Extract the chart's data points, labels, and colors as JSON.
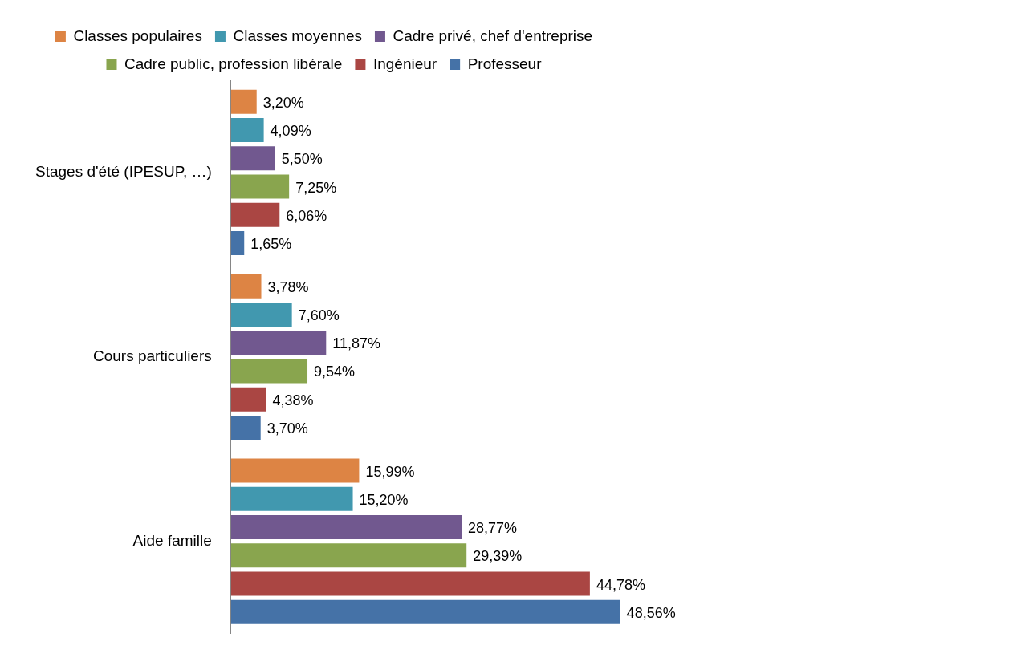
{
  "chart_data": {
    "type": "bar",
    "orientation": "horizontal",
    "legend": "top",
    "categories": [
      "Stages d'été (IPESUP, …)",
      "Cours particuliers",
      "Aide famille"
    ],
    "series": [
      {
        "name": "Classes populaires",
        "color": "#dd8444",
        "values": [
          3.2,
          3.78,
          15.99
        ],
        "value_labels": [
          "3,20%",
          "3,78%",
          "15,99%"
        ]
      },
      {
        "name": "Classes moyennes",
        "color": "#4198af",
        "values": [
          4.09,
          7.6,
          15.2
        ],
        "value_labels": [
          "4,09%",
          "7,60%",
          "15,20%"
        ]
      },
      {
        "name": "Cadre privé, chef d'entreprise",
        "color": "#71588f",
        "values": [
          5.5,
          11.87,
          28.77
        ],
        "value_labels": [
          "5,50%",
          "11,87%",
          "28,77%"
        ]
      },
      {
        "name": "Cadre public, profession libérale",
        "color": "#89a54e",
        "values": [
          7.25,
          9.54,
          29.39
        ],
        "value_labels": [
          "7,25%",
          "9,54%",
          "29,39%"
        ]
      },
      {
        "name": "Ingénieur",
        "color": "#aa4643",
        "values": [
          6.06,
          4.38,
          44.78
        ],
        "value_labels": [
          "6,06%",
          "4,38%",
          "44,78%"
        ]
      },
      {
        "name": "Professeur",
        "color": "#4572a7",
        "values": [
          1.65,
          3.7,
          48.56
        ],
        "value_labels": [
          "1,65%",
          "3,70%",
          "48,56%"
        ]
      }
    ]
  }
}
